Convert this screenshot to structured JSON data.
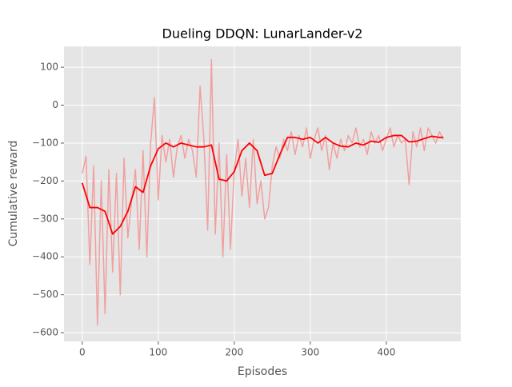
{
  "chart_data": {
    "type": "line",
    "title": "Dueling DDQN: LunarLander-v2",
    "x_label": "Episodes",
    "y_label": "Cumulative reward",
    "xlim": [
      -24,
      498
    ],
    "ylim": [
      -623,
      155
    ],
    "xticks": [
      0,
      100,
      200,
      300,
      400
    ],
    "yticks": [
      {
        "value": -600,
        "label": "−600"
      },
      {
        "value": -500,
        "label": "−500"
      },
      {
        "value": -400,
        "label": "−400"
      },
      {
        "value": -300,
        "label": "−300"
      },
      {
        "value": -200,
        "label": "−200"
      },
      {
        "value": -100,
        "label": "−100"
      },
      0,
      100
    ],
    "grid": true,
    "series": [
      {
        "color": "#f0a0a0",
        "x": [
          0,
          5,
          10,
          15,
          20,
          25,
          30,
          35,
          40,
          45,
          50,
          55,
          60,
          65,
          70,
          75,
          80,
          85,
          90,
          95,
          100,
          105,
          110,
          115,
          120,
          125,
          130,
          135,
          140,
          145,
          150,
          155,
          160,
          165,
          170,
          175,
          180,
          185,
          190,
          195,
          200,
          205,
          210,
          215,
          220,
          225,
          230,
          235,
          240,
          245,
          250,
          255,
          260,
          265,
          270,
          275,
          280,
          285,
          290,
          295,
          300,
          305,
          310,
          315,
          320,
          325,
          330,
          335,
          340,
          345,
          350,
          355,
          360,
          365,
          370,
          375,
          380,
          385,
          390,
          395,
          400,
          405,
          410,
          415,
          420,
          425,
          430,
          435,
          440,
          445,
          450,
          455,
          460,
          465,
          470,
          475
        ],
        "values": [
          -180,
          -135,
          -420,
          -160,
          -580,
          -200,
          -550,
          -170,
          -440,
          -180,
          -500,
          -140,
          -350,
          -250,
          -170,
          -380,
          -120,
          -400,
          -100,
          20,
          -250,
          -80,
          -150,
          -90,
          -190,
          -110,
          -80,
          -140,
          -90,
          -120,
          -190,
          50,
          -90,
          -330,
          120,
          -340,
          -100,
          -400,
          -130,
          -380,
          -170,
          -90,
          -240,
          -140,
          -270,
          -90,
          -260,
          -200,
          -300,
          -270,
          -160,
          -110,
          -140,
          -90,
          -120,
          -70,
          -130,
          -80,
          -110,
          -60,
          -140,
          -90,
          -60,
          -120,
          -80,
          -170,
          -100,
          -140,
          -90,
          -120,
          -80,
          -100,
          -60,
          -110,
          -90,
          -130,
          -70,
          -100,
          -80,
          -120,
          -90,
          -60,
          -110,
          -80,
          -100,
          -90,
          -210,
          -70,
          -110,
          -60,
          -120,
          -60,
          -80,
          -100,
          -70,
          -90
        ]
      },
      {
        "color": "#ff0000",
        "x": [
          0,
          10,
          20,
          30,
          40,
          50,
          60,
          70,
          80,
          90,
          100,
          110,
          120,
          130,
          140,
          150,
          160,
          170,
          180,
          190,
          200,
          210,
          220,
          230,
          240,
          250,
          260,
          270,
          280,
          290,
          300,
          310,
          320,
          330,
          340,
          350,
          360,
          370,
          380,
          390,
          400,
          410,
          420,
          430,
          440,
          450,
          460,
          470,
          475
        ],
        "values": [
          -205,
          -270,
          -270,
          -280,
          -340,
          -320,
          -280,
          -215,
          -230,
          -160,
          -115,
          -100,
          -110,
          -100,
          -105,
          -110,
          -110,
          -105,
          -195,
          -200,
          -175,
          -120,
          -100,
          -120,
          -185,
          -180,
          -130,
          -85,
          -85,
          -90,
          -85,
          -100,
          -85,
          -100,
          -108,
          -110,
          -100,
          -105,
          -95,
          -98,
          -85,
          -80,
          -80,
          -97,
          -95,
          -88,
          -82,
          -85,
          -85
        ]
      }
    ]
  }
}
